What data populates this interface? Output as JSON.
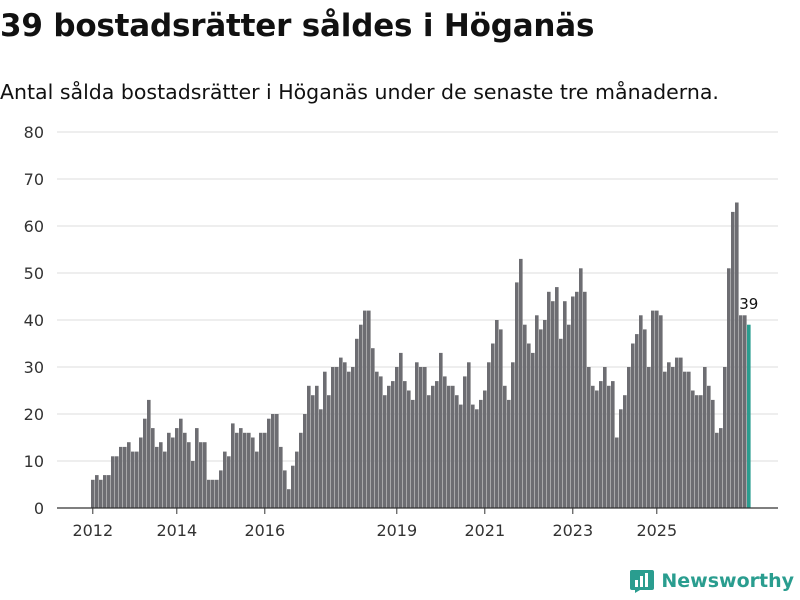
{
  "header": {
    "title": "39 bostadsrätter såldes i Höganäs",
    "subtitle": "Antal sålda bostadsrätter i Höganäs under de senaste tre månaderna."
  },
  "brand": {
    "name": "Newsworthy",
    "icon": "newsworthy-logo-icon"
  },
  "colors": {
    "bar": "#6d6d72",
    "highlight": "#2a9d8f",
    "grid": "#dedede",
    "axis": "#333333"
  },
  "chart_data": {
    "type": "bar",
    "title": "39 bostadsrätter såldes i Höganäs",
    "xlabel": "",
    "ylabel": "",
    "ylim": [
      0,
      80
    ],
    "yticks": [
      0,
      10,
      20,
      30,
      40,
      50,
      60,
      70,
      80
    ],
    "xticks": [
      {
        "label": "2012",
        "index": 0
      },
      {
        "label": "2014",
        "index": 21
      },
      {
        "label": "2016",
        "index": 43
      },
      {
        "label": "2019",
        "index": 76
      },
      {
        "label": "2021",
        "index": 98
      },
      {
        "label": "2023",
        "index": 120
      },
      {
        "label": "2025",
        "index": 141
      }
    ],
    "values": [
      6,
      7,
      6,
      7,
      7,
      11,
      11,
      13,
      13,
      14,
      12,
      12,
      15,
      19,
      23,
      17,
      13,
      14,
      12,
      16,
      15,
      17,
      19,
      16,
      14,
      10,
      17,
      14,
      14,
      6,
      6,
      6,
      8,
      12,
      11,
      18,
      16,
      17,
      16,
      16,
      15,
      12,
      16,
      16,
      19,
      20,
      20,
      13,
      8,
      4,
      9,
      12,
      16,
      20,
      26,
      24,
      26,
      21,
      29,
      24,
      30,
      30,
      32,
      31,
      29,
      30,
      36,
      39,
      42,
      42,
      34,
      29,
      28,
      24,
      26,
      27,
      30,
      33,
      27,
      25,
      23,
      31,
      30,
      30,
      24,
      26,
      27,
      33,
      28,
      26,
      26,
      24,
      22,
      28,
      31,
      22,
      21,
      23,
      25,
      31,
      35,
      40,
      38,
      26,
      23,
      31,
      48,
      53,
      39,
      35,
      33,
      41,
      38,
      40,
      46,
      44,
      47,
      36,
      44,
      39,
      45,
      46,
      51,
      46,
      30,
      26,
      25,
      27,
      30,
      26,
      27,
      15,
      21,
      24,
      30,
      35,
      37,
      41,
      38,
      30,
      42,
      42,
      41,
      29,
      31,
      30,
      32,
      32,
      29,
      29,
      25,
      24,
      24,
      30,
      26,
      23,
      16,
      17,
      30,
      51,
      63,
      65,
      41,
      41,
      39
    ],
    "highlight_index": 164,
    "annotations": [
      {
        "index": 164,
        "text": "39"
      }
    ]
  }
}
